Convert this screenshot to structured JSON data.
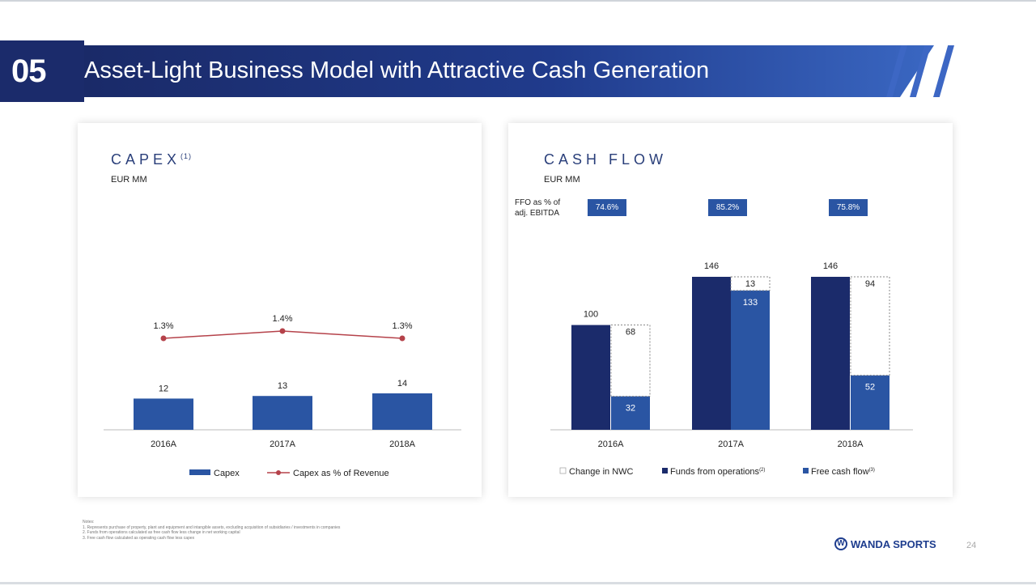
{
  "header": {
    "section_number": "05",
    "title": "Asset-Light Business Model with Attractive Cash Generation"
  },
  "capex": {
    "title": "CAPEX",
    "title_sup": "(1)",
    "unit": "EUR MM",
    "legend": {
      "bar": "Capex",
      "line": "Capex as % of Revenue"
    }
  },
  "cashflow": {
    "title": "CASH FLOW",
    "unit": "EUR MM",
    "ffo_label_line1": "FFO as % of",
    "ffo_label_line2": "adj. EBITDA",
    "ffo_values": [
      "74.6%",
      "85.2%",
      "75.8%"
    ],
    "legend": {
      "nwc": "Change in NWC",
      "ffo": "Funds from operations",
      "ffo_sup": "(2)",
      "fcf": "Free cash flow",
      "fcf_sup": "(3)"
    }
  },
  "chart_data": [
    {
      "type": "bar",
      "categories": [
        "2016A",
        "2017A",
        "2018A"
      ],
      "series": [
        {
          "name": "Capex",
          "values": [
            12,
            13,
            14
          ],
          "color": "#2a55a3"
        },
        {
          "name": "Capex as % of Revenue",
          "type": "line",
          "values": [
            1.3,
            1.4,
            1.3
          ],
          "labels": [
            "1.3%",
            "1.4%",
            "1.3%"
          ],
          "color": "#b5424a"
        }
      ]
    },
    {
      "type": "bar",
      "categories": [
        "2016A",
        "2017A",
        "2018A"
      ],
      "series": [
        {
          "name": "Funds from operations",
          "values": [
            100,
            146,
            146
          ],
          "color": "#1b2b6b"
        },
        {
          "name": "Free cash flow",
          "values": [
            32,
            133,
            52
          ],
          "color": "#2a55a3",
          "stack": "right"
        },
        {
          "name": "Change in NWC",
          "values": [
            68,
            13,
            94
          ],
          "color": "#ffffff",
          "stack": "right"
        }
      ]
    }
  ],
  "notes": {
    "heading": "Notes:",
    "lines": [
      "1.   Represents purchase of property, plant and equipment and intangible assets, excluding acquisition of subsidiaries / investments in companies",
      "2.   Funds from operations calculated as free cash flow less change in net working capital",
      "3.   Free cash flow calculated as operating cash flow less capex"
    ]
  },
  "footer": {
    "logo_text": "WANDA SPORTS",
    "page_number": "24"
  }
}
